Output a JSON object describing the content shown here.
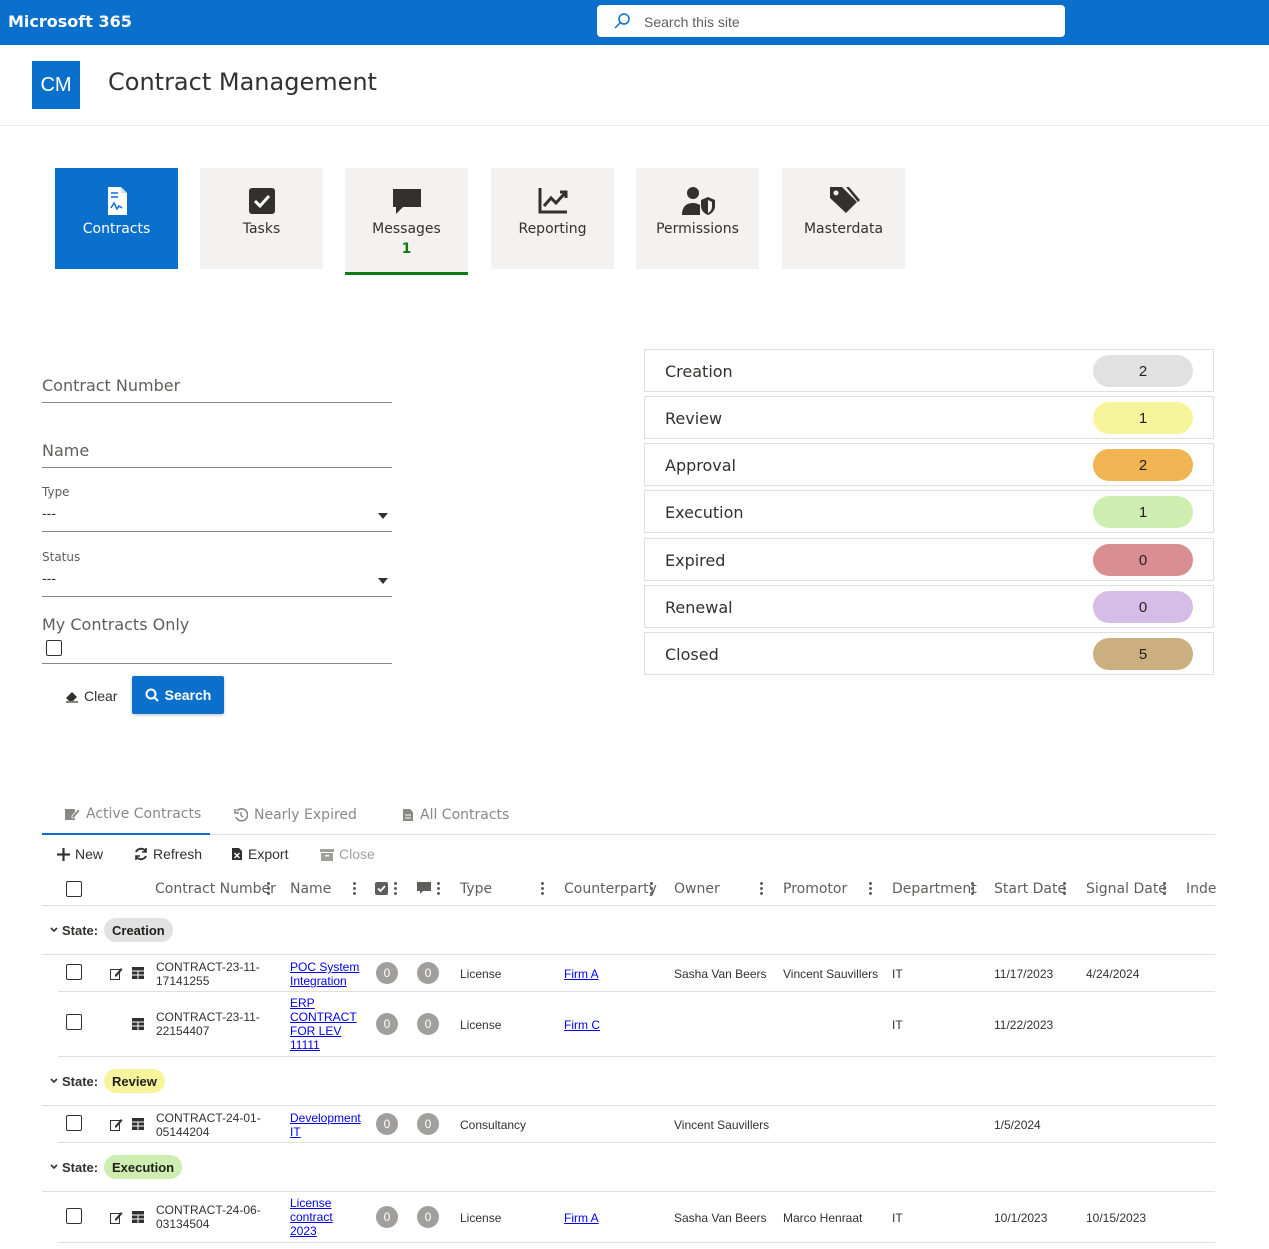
{
  "topbar": {
    "brand": "Microsoft 365",
    "search_placeholder": "Search this site"
  },
  "site": {
    "logo": "CM",
    "title": "Contract Management"
  },
  "tiles": [
    {
      "label": "Contracts",
      "icon": "contract-document-icon",
      "active": true
    },
    {
      "label": "Tasks",
      "icon": "checkbox-icon"
    },
    {
      "label": "Messages",
      "icon": "chat-bubble-icon",
      "badge": "1"
    },
    {
      "label": "Reporting",
      "icon": "trend-chart-icon"
    },
    {
      "label": "Permissions",
      "icon": "user-shield-icon"
    },
    {
      "label": "Masterdata",
      "icon": "tags-icon"
    }
  ],
  "filters": {
    "contract_number_label": "Contract Number",
    "name_label": "Name",
    "type_label": "Type",
    "type_value": "---",
    "status_label": "Status",
    "status_value": "---",
    "my_contracts_label": "My Contracts Only",
    "clear_label": "Clear",
    "search_label": "Search"
  },
  "states": [
    {
      "label": "Creation",
      "count": "2",
      "color": "#e1e1e1"
    },
    {
      "label": "Review",
      "count": "1",
      "color": "#f6f59b"
    },
    {
      "label": "Approval",
      "count": "2",
      "color": "#f0b552"
    },
    {
      "label": "Execution",
      "count": "1",
      "color": "#cdeeb0"
    },
    {
      "label": "Expired",
      "count": "0",
      "color": "#d98f91"
    },
    {
      "label": "Renewal",
      "count": "0",
      "color": "#d6bde8"
    },
    {
      "label": "Closed",
      "count": "5",
      "color": "#ccaf80"
    }
  ],
  "tabs": [
    {
      "label": "Active Contracts",
      "icon": "edit-document-icon"
    },
    {
      "label": "Nearly Expired",
      "icon": "history-icon"
    },
    {
      "label": "All Contracts",
      "icon": "document-icon"
    }
  ],
  "commands": {
    "new": "New",
    "refresh": "Refresh",
    "export": "Export",
    "close": "Close"
  },
  "columns": {
    "contract_number": "Contract Number",
    "name": "Name",
    "type": "Type",
    "counterparty": "Counterparty",
    "owner": "Owner",
    "promotor": "Promotor",
    "department": "Department",
    "start_date": "Start Date",
    "signal_date": "Signal Date",
    "index": "Inde"
  },
  "group_prefix": "State:",
  "groups": [
    {
      "state": "Creation",
      "color": "#e1e1e1",
      "rows": [
        {
          "number": "CONTRACT-23-11-17141255",
          "name": "POC System Integration",
          "tasks": "0",
          "messages": "0",
          "type": "License",
          "counterparty": "Firm A",
          "owner": "Sasha Van Beers",
          "promotor": "Vincent Sauvillers",
          "department": "IT",
          "start_date": "11/17/2023",
          "signal_date": "4/24/2024"
        },
        {
          "number": "CONTRACT-23-11-22154407",
          "name": "ERP CONTRACT FOR LEV 11111",
          "tasks": "0",
          "messages": "0",
          "type": "License",
          "counterparty": "Firm C",
          "owner": "",
          "promotor": "",
          "department": "IT",
          "start_date": "11/22/2023",
          "signal_date": ""
        }
      ]
    },
    {
      "state": "Review",
      "color": "#f6f59b",
      "rows": [
        {
          "number": "CONTRACT-24-01-05144204",
          "name": "Development IT",
          "tasks": "0",
          "messages": "0",
          "type": "Consultancy",
          "counterparty": "",
          "owner": "Vincent Sauvillers",
          "promotor": "",
          "department": "",
          "start_date": "1/5/2024",
          "signal_date": ""
        }
      ]
    },
    {
      "state": "Execution",
      "color": "#cdeeb0",
      "rows": [
        {
          "number": "CONTRACT-24-06-03134504",
          "name": "License contract 2023",
          "tasks": "0",
          "messages": "0",
          "type": "License",
          "counterparty": "Firm A",
          "owner": "Sasha Van Beers",
          "promotor": "Marco Henraat",
          "department": "IT",
          "start_date": "10/1/2023",
          "signal_date": "10/15/2023"
        }
      ]
    }
  ]
}
